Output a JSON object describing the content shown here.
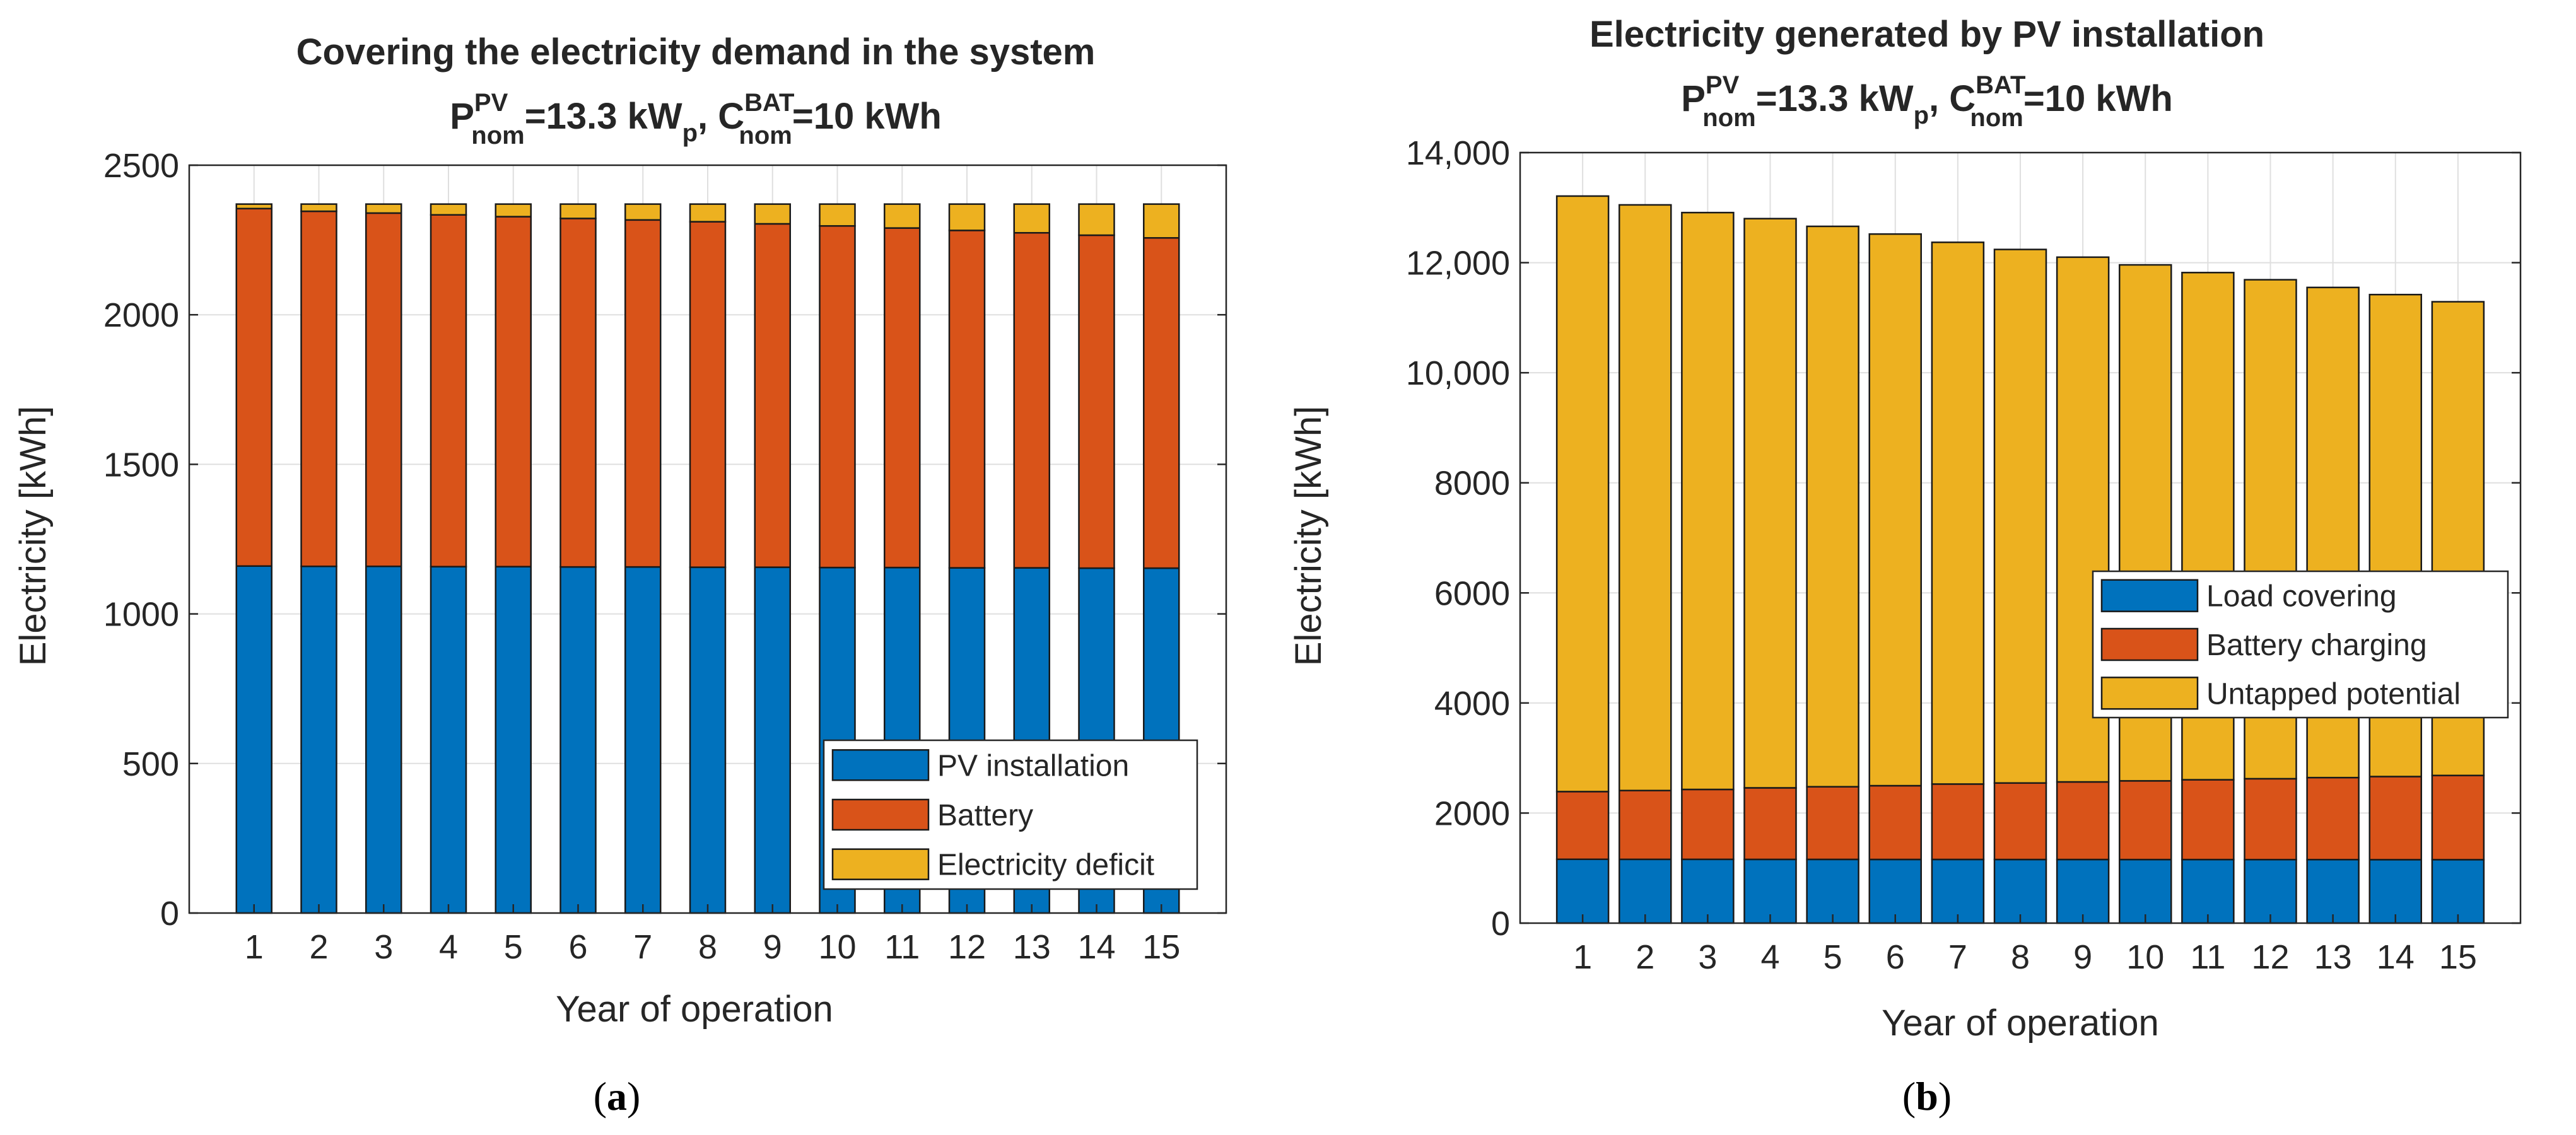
{
  "chart_data": [
    {
      "type": "bar",
      "stacked": true,
      "title": "Covering the electricity demand in the system",
      "subtitle": {
        "p_base": "P",
        "p_sup": "PV",
        "p_sub": "nom",
        "p_value": "=13.3 kW",
        "p_unit_sub": "p",
        "sep": ", ",
        "c_base": "C",
        "c_sup": "BAT",
        "c_sub": "nom",
        "c_value": "=10 kWh"
      },
      "xlabel": "Year of operation",
      "ylabel": "Electricity [kWh]",
      "categories": [
        "1",
        "2",
        "3",
        "4",
        "5",
        "6",
        "7",
        "8",
        "9",
        "10",
        "11",
        "12",
        "13",
        "14",
        "15"
      ],
      "ylim": [
        0,
        2500
      ],
      "yticks": [
        0,
        500,
        1000,
        1500,
        2000,
        2500
      ],
      "ytick_labels": [
        "0",
        "500",
        "1000",
        "1500",
        "2000",
        "2500"
      ],
      "grid": true,
      "legend_position": "bottom-right",
      "series": [
        {
          "name": "PV installation",
          "color": "#0072BD",
          "values": [
            1160,
            1159,
            1159,
            1158,
            1158,
            1157,
            1157,
            1156,
            1156,
            1155,
            1155,
            1154,
            1154,
            1153,
            1153
          ]
        },
        {
          "name": "Battery",
          "color": "#D95319",
          "values": [
            1195,
            1187,
            1181,
            1176,
            1170,
            1165,
            1160,
            1155,
            1148,
            1142,
            1135,
            1128,
            1120,
            1113,
            1104
          ]
        },
        {
          "name": "Electricity deficit",
          "color": "#EDB120",
          "values": [
            15,
            24,
            30,
            36,
            42,
            48,
            53,
            59,
            66,
            73,
            80,
            88,
            96,
            104,
            113
          ]
        }
      ],
      "panel_label": {
        "open": "(",
        "letter": "a",
        "close": ")"
      }
    },
    {
      "type": "bar",
      "stacked": true,
      "title": "Electricity generated by PV installation",
      "subtitle": {
        "p_base": "P",
        "p_sup": "PV",
        "p_sub": "nom",
        "p_value": "=13.3 kW",
        "p_unit_sub": "p",
        "sep": ", ",
        "c_base": "C",
        "c_sup": "BAT",
        "c_sub": "nom",
        "c_value": "=10 kWh"
      },
      "xlabel": "Year of operation",
      "ylabel": "Electricity [kWh]",
      "categories": [
        "1",
        "2",
        "3",
        "4",
        "5",
        "6",
        "7",
        "8",
        "9",
        "10",
        "11",
        "12",
        "13",
        "14",
        "15"
      ],
      "ylim": [
        0,
        14000
      ],
      "yticks": [
        0,
        2000,
        4000,
        6000,
        8000,
        10000,
        12000,
        14000
      ],
      "ytick_labels": [
        "0",
        "2000",
        "4000",
        "6000",
        "8000",
        "10,000",
        "12,000",
        "14,000"
      ],
      "grid": true,
      "legend_position": "center-right",
      "series": [
        {
          "name": "Load covering",
          "color": "#0072BD",
          "values": [
            1160,
            1159,
            1159,
            1158,
            1158,
            1157,
            1157,
            1156,
            1156,
            1155,
            1155,
            1154,
            1154,
            1153,
            1153
          ]
        },
        {
          "name": "Battery charging",
          "color": "#D95319",
          "values": [
            1230,
            1250,
            1270,
            1300,
            1320,
            1340,
            1370,
            1390,
            1410,
            1430,
            1450,
            1470,
            1490,
            1510,
            1530
          ]
        },
        {
          "name": "Untapped potential",
          "color": "#EDB120",
          "values": [
            10820,
            10641,
            10481,
            10342,
            10182,
            10023,
            9843,
            9694,
            9534,
            9375,
            9215,
            9066,
            8906,
            8757,
            8607
          ]
        }
      ],
      "panel_label": {
        "open": "(",
        "letter": "b",
        "close": ")"
      }
    }
  ]
}
